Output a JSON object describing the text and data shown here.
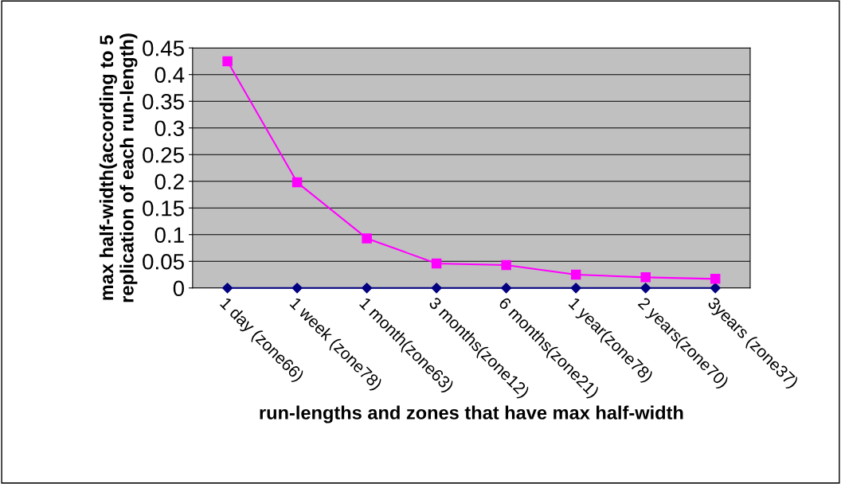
{
  "chart_data": {
    "type": "line",
    "xlabel": "run-lengths and zones that have max half-width",
    "ylabel": "max half-width(according to 5 replication of each run-length)",
    "categories": [
      "1 day (zone66)",
      "1 week (zone78)",
      "1 month(zone63)",
      "3 months(zone12)",
      "6 months(zone21)",
      "1 year(zone78)",
      "2 years(zone70)",
      "3years (zone37)"
    ],
    "series": [
      {
        "color": "#000080",
        "marker": "diamond",
        "values": [
          0,
          0,
          0,
          0,
          0,
          0,
          0,
          0
        ]
      },
      {
        "color": "#ff00ff",
        "marker": "square",
        "values": [
          0.425,
          0.198,
          0.093,
          0.046,
          0.043,
          0.025,
          0.02,
          0.017
        ]
      }
    ],
    "ylim": [
      0,
      0.45
    ],
    "yticks": [
      0,
      0.05,
      0.1,
      0.15,
      0.2,
      0.25,
      0.3,
      0.35,
      0.4,
      0.45
    ],
    "grid": "y"
  }
}
